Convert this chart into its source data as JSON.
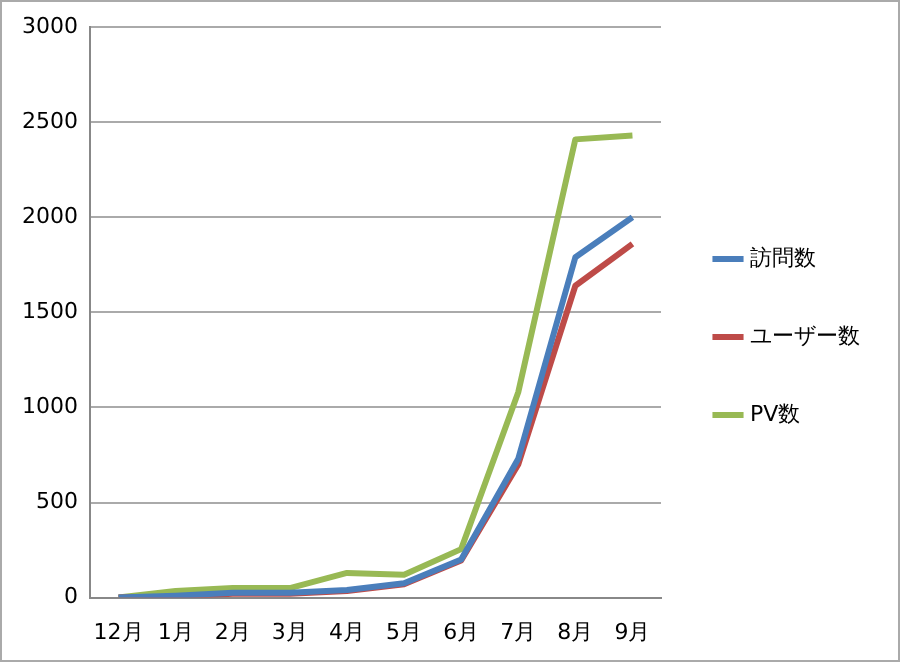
{
  "chart_data": {
    "type": "line",
    "categories": [
      "12月",
      "1月",
      "2月",
      "3月",
      "4月",
      "5月",
      "6月",
      "7月",
      "8月",
      "9月"
    ],
    "series": [
      {
        "name": "訪問数",
        "color": "#4a7ebb",
        "values": [
          0,
          10,
          25,
          25,
          40,
          75,
          200,
          730,
          1790,
          2000
        ]
      },
      {
        "name": "ユーザー数",
        "color": "#be4b48",
        "values": [
          0,
          5,
          20,
          20,
          35,
          70,
          195,
          700,
          1640,
          1860
        ]
      },
      {
        "name": "PV数",
        "color": "#98b954",
        "values": [
          0,
          35,
          50,
          50,
          130,
          120,
          255,
          1080,
          2410,
          2430
        ]
      }
    ],
    "ylim": [
      0,
      3000
    ],
    "yticks": [
      0,
      500,
      1000,
      1500,
      2000,
      2500,
      3000
    ],
    "grid": "y",
    "legend": "right",
    "marker": "none"
  }
}
